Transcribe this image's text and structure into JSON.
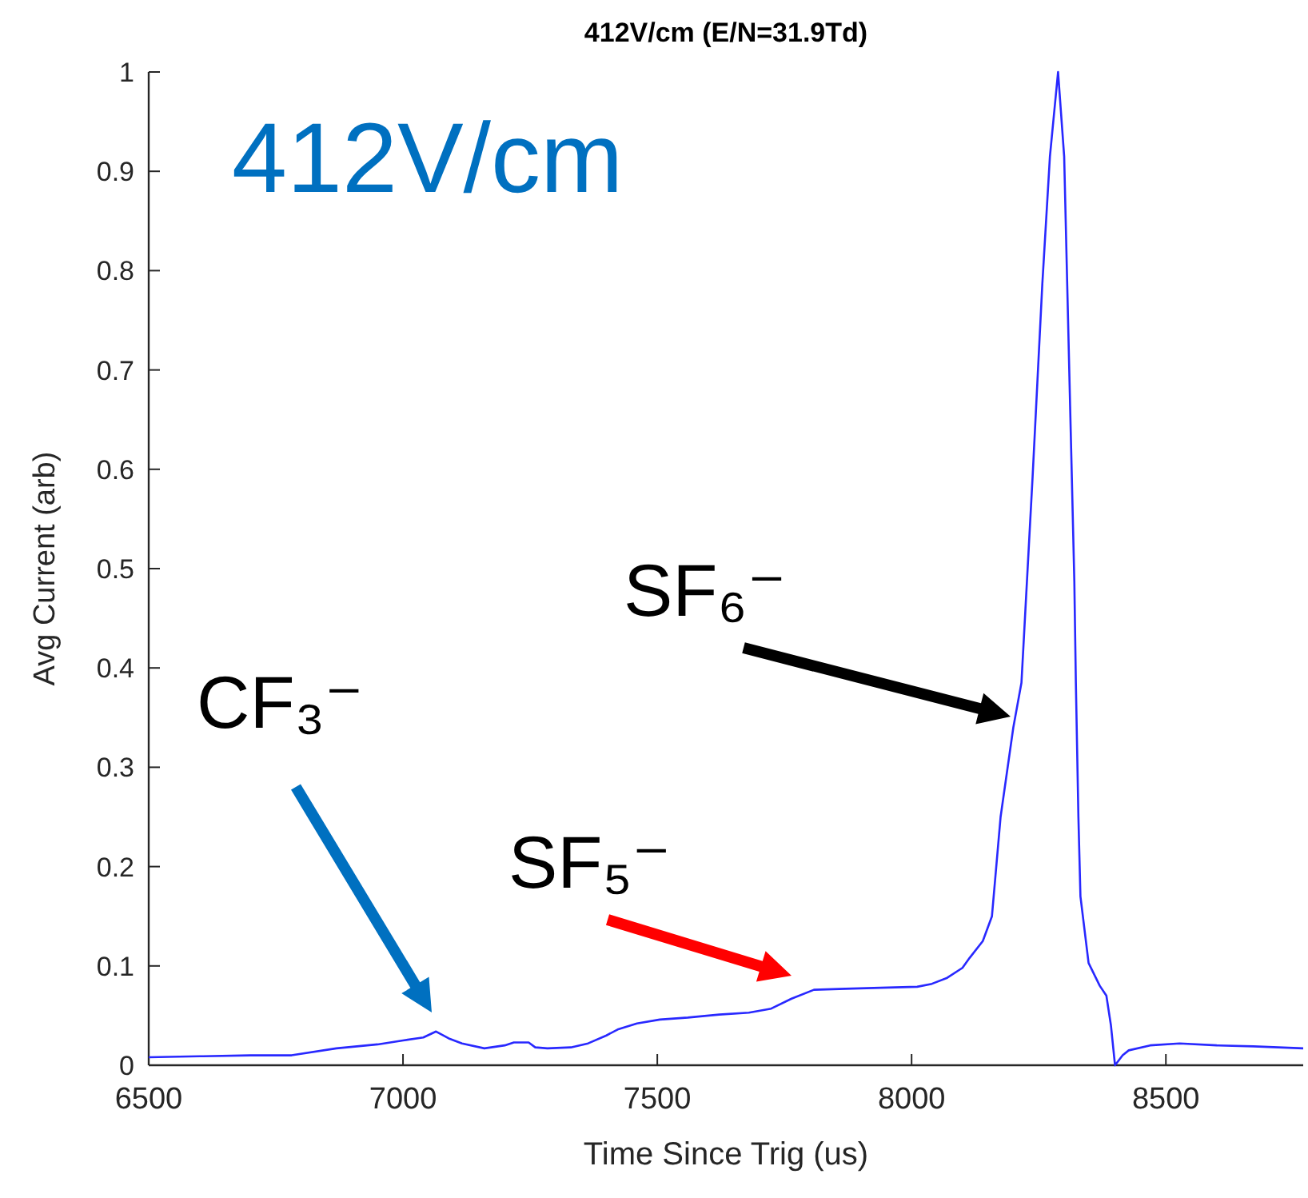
{
  "chart_data": {
    "type": "line",
    "title": "412V/cm (E/N=31.9Td)",
    "xlabel": "Time Since Trig (us)",
    "ylabel": "Avg Current (arb)",
    "x": [
      6500,
      6600,
      6700,
      6781,
      6869,
      6950,
      7000,
      7040,
      7065,
      7090,
      7116,
      7160,
      7200,
      7218,
      7247,
      7260,
      7284,
      7330,
      7364,
      7400,
      7422,
      7460,
      7505,
      7560,
      7622,
      7680,
      7724,
      7764,
      7808,
      7870,
      7939,
      8011,
      8040,
      8070,
      8100,
      8114,
      8140,
      8158,
      8175,
      8200,
      8216,
      8238,
      8257,
      8272,
      8288,
      8300,
      8310,
      8320,
      8323,
      8328,
      8332,
      8348,
      8370,
      8383,
      8392,
      8400,
      8415,
      8427,
      8469,
      8527,
      8600,
      8672,
      8770
    ],
    "series": [
      {
        "color": "#2828ff",
        "values": [
          0.008,
          0.009,
          0.01,
          0.01,
          0.017,
          0.021,
          0.025,
          0.028,
          0.034,
          0.027,
          0.022,
          0.017,
          0.02,
          0.023,
          0.023,
          0.018,
          0.017,
          0.018,
          0.022,
          0.03,
          0.036,
          0.042,
          0.046,
          0.048,
          0.051,
          0.053,
          0.057,
          0.067,
          0.076,
          0.077,
          0.078,
          0.079,
          0.082,
          0.088,
          0.098,
          0.108,
          0.125,
          0.15,
          0.25,
          0.34,
          0.385,
          0.593,
          0.786,
          0.915,
          1.0,
          0.915,
          0.7,
          0.487,
          0.385,
          0.25,
          0.17,
          0.103,
          0.08,
          0.07,
          0.04,
          0.0,
          0.01,
          0.015,
          0.02,
          0.022,
          0.02,
          0.019,
          0.017
        ]
      }
    ],
    "xlim": [
      6500,
      8770
    ],
    "xticks": [
      6500,
      7000,
      7500,
      8000,
      8500
    ],
    "ylim": [
      0,
      1
    ],
    "yticks": [
      0,
      0.1,
      0.2,
      0.3,
      0.4,
      0.5,
      0.6,
      0.7,
      0.8,
      0.9,
      1
    ],
    "annotations": [
      "412V/cm",
      "CF₃⁻",
      "SF₅⁻",
      "SF₆⁻"
    ],
    "grid": false,
    "marker": "none",
    "line_style": "solid"
  }
}
